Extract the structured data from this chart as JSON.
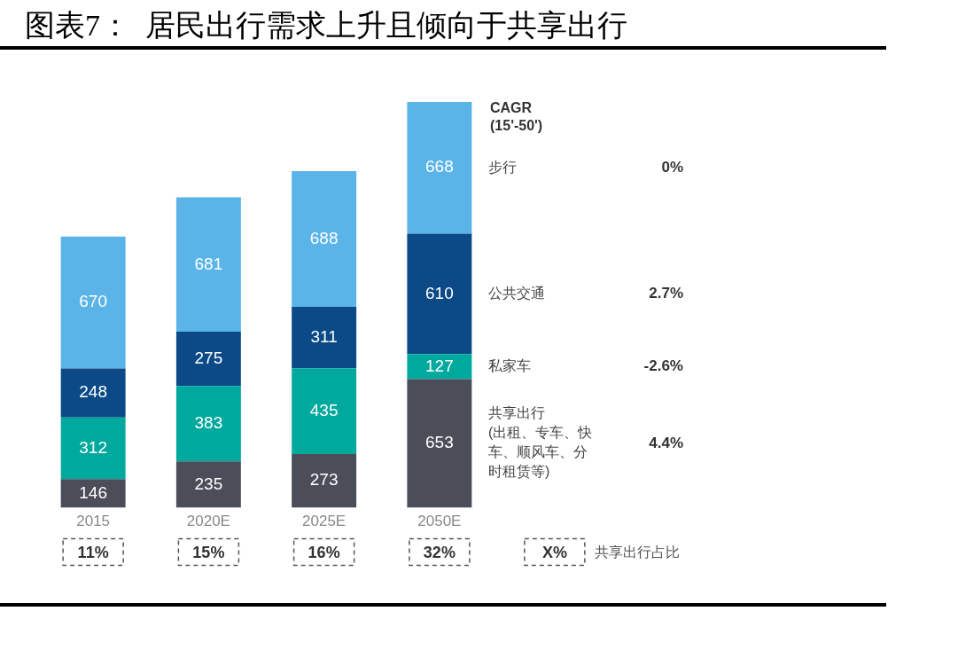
{
  "chart_data": {
    "type": "bar",
    "title": "图表7：  居民出行需求上升且倾向于共享出行",
    "stacked": true,
    "data_labels": true,
    "legend": false,
    "grid": false,
    "tick_labels": "x",
    "categories": [
      "2015",
      "2020E",
      "2025E",
      "2050E"
    ],
    "series": [
      {
        "name": "共享出行(出租、专车、快车、顺风车、分时租赁等)",
        "color": "#4b4e59",
        "values": [
          146,
          235,
          273,
          653
        ]
      },
      {
        "name": "私家车",
        "color": "#00a99d",
        "values": [
          312,
          383,
          435,
          127
        ]
      },
      {
        "name": "公共交通",
        "color": "#0b4a86",
        "values": [
          248,
          275,
          311,
          610
        ]
      },
      {
        "name": "步行",
        "color": "#5ab4e8",
        "values": [
          670,
          681,
          688,
          668
        ]
      }
    ],
    "annotations": [
      "CAGR\n(15'-50')",
      "4.4%",
      "-2.6%",
      "2.7%",
      "0%",
      "11%",
      "15%",
      "16%",
      "32%",
      "X%",
      "共享出行占比"
    ]
  }
}
